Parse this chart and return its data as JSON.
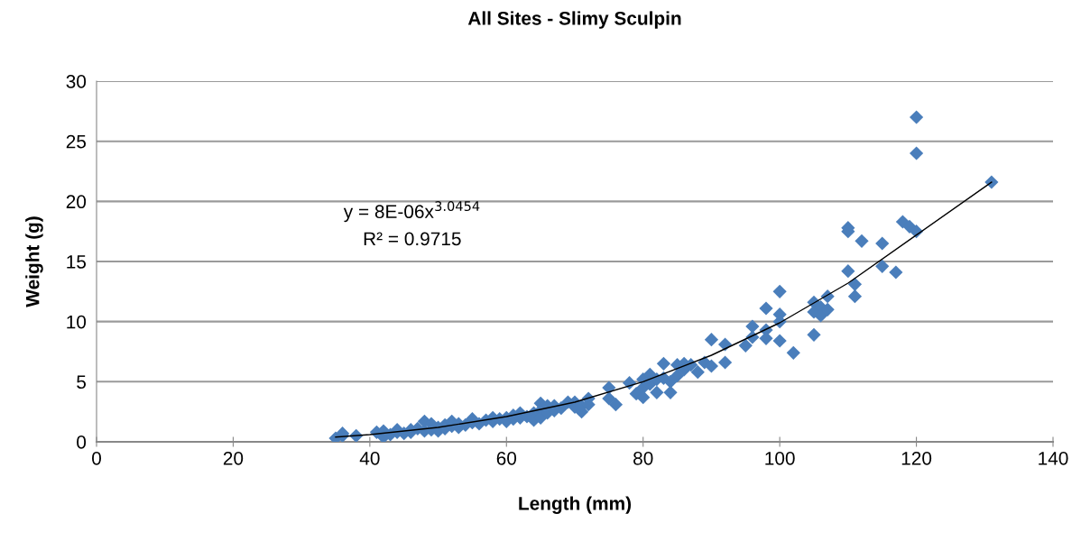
{
  "chart_data": {
    "type": "scatter",
    "title": "All Sites - Slimy Sculpin",
    "xlabel": "Length (mm)",
    "ylabel": "Weight (g)",
    "annotations": [
      "y = 8E-06x$^{3.0454}$",
      "R² = 0.9715"
    ],
    "xlim": [
      0,
      140
    ],
    "xticks": [
      0,
      20,
      40,
      60,
      80,
      100,
      120,
      140
    ],
    "ylim": [
      0,
      30
    ],
    "yticks": [
      0,
      5,
      10,
      15,
      20,
      25,
      30
    ],
    "grid": "y",
    "legend": false,
    "series": [
      {
        "color": "#4a7ebb",
        "marker": "diamond",
        "x": [
          35,
          36,
          36,
          38,
          41,
          42,
          42,
          43,
          44,
          44,
          45,
          46,
          46,
          47,
          48,
          48,
          49,
          49,
          50,
          50,
          51,
          51,
          52,
          52,
          53,
          53,
          54,
          55,
          55,
          56,
          57,
          58,
          58,
          59,
          60,
          60,
          61,
          61,
          62,
          62,
          63,
          64,
          64,
          65,
          65,
          65,
          66,
          66,
          67,
          67,
          68,
          69,
          70,
          70,
          71,
          71,
          72,
          72,
          75,
          75,
          76,
          78,
          79,
          80,
          80,
          80,
          81,
          81,
          82,
          82,
          83,
          83,
          84,
          84,
          85,
          85,
          86,
          86,
          87,
          88,
          89,
          90,
          90,
          92,
          92,
          95,
          96,
          96,
          98,
          98,
          98,
          100,
          100,
          100,
          100,
          102,
          105,
          105,
          105,
          106,
          106,
          107,
          107,
          110,
          110,
          110,
          111,
          111,
          112,
          115,
          115,
          117,
          118,
          119,
          120,
          120,
          120,
          131
        ],
        "values": [
          0.3,
          0.5,
          0.7,
          0.5,
          0.8,
          0.4,
          0.9,
          0.6,
          0.8,
          1.0,
          0.7,
          1.0,
          0.8,
          1.1,
          0.9,
          1.7,
          1.5,
          1.0,
          1.2,
          0.9,
          1.4,
          1.1,
          1.7,
          1.3,
          1.5,
          1.2,
          1.4,
          1.9,
          1.6,
          1.5,
          1.8,
          1.7,
          2.0,
          1.9,
          2.0,
          1.7,
          2.2,
          1.9,
          2.4,
          2.0,
          2.1,
          2.4,
          1.8,
          3.2,
          2.6,
          2.0,
          3.0,
          2.4,
          3.0,
          2.6,
          2.8,
          3.3,
          3.3,
          2.9,
          2.5,
          3.0,
          3.6,
          3.1,
          4.5,
          3.6,
          3.1,
          4.9,
          4.0,
          5.2,
          4.5,
          3.7,
          5.6,
          4.8,
          5.2,
          4.1,
          6.5,
          5.3,
          5.0,
          4.1,
          6.4,
          5.5,
          6.5,
          6.0,
          6.4,
          5.8,
          6.6,
          8.5,
          6.3,
          8.1,
          6.6,
          8.0,
          9.6,
          8.7,
          11.1,
          9.3,
          8.6,
          12.5,
          10.6,
          10.0,
          8.4,
          7.4,
          11.6,
          10.8,
          8.9,
          11.2,
          10.5,
          12.1,
          11.0,
          17.8,
          17.5,
          14.2,
          13.1,
          12.1,
          16.7,
          16.5,
          14.6,
          14.1,
          18.3,
          17.9,
          17.5,
          27.0,
          24.0,
          21.6
        ]
      },
      {
        "type": "line",
        "color": "#000000",
        "marker": "none",
        "line_style": "solid",
        "x": [
          35,
          40,
          50,
          60,
          70,
          80,
          90,
          100,
          110,
          120,
          131
        ],
        "values": [
          0.4,
          0.6,
          1.2,
          2.1,
          3.3,
          5.0,
          7.2,
          9.9,
          13.2,
          17.2,
          21.6
        ]
      }
    ]
  }
}
